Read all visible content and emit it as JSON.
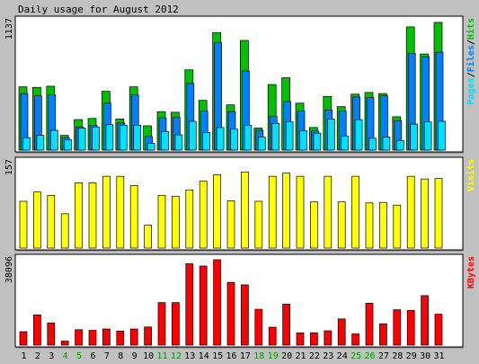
{
  "chart_data": {
    "type": "bar",
    "title": "Daily usage for August 2012",
    "categories": [
      "1",
      "2",
      "3",
      "4",
      "5",
      "6",
      "7",
      "8",
      "9",
      "10",
      "11",
      "12",
      "13",
      "14",
      "15",
      "16",
      "17",
      "18",
      "19",
      "20",
      "21",
      "22",
      "23",
      "24",
      "25",
      "26",
      "27",
      "28",
      "29",
      "30",
      "31"
    ],
    "weekend_days": [
      "4",
      "5",
      "11",
      "12",
      "18",
      "19",
      "25",
      "26"
    ],
    "colors": {
      "background": "#c0c0c0",
      "panel": "#ffffff",
      "hits": "#00c000",
      "files": "#0080ff",
      "pages": "#00e0ff",
      "visits": "#ffff00",
      "kbytes": "#ff0000",
      "weekday_label": "#000000",
      "weekend_label": "#00a000"
    },
    "panels": [
      {
        "id": "hits-files-pages",
        "ymax_label": "1137",
        "ylim": [
          0,
          1137
        ],
        "legend": [
          {
            "text": "Pages",
            "color": "#00e0ff"
          },
          {
            "text": "/",
            "color": "#000000"
          },
          {
            "text": "Files",
            "color": "#0080ff"
          },
          {
            "text": "/",
            "color": "#000000"
          },
          {
            "text": "Hits",
            "color": "#00c000"
          }
        ],
        "series": [
          {
            "name": "Hits",
            "values": [
              560,
              555,
              565,
              130,
              270,
              280,
              520,
              275,
              560,
              215,
              340,
              335,
              710,
              440,
              1040,
              400,
              970,
              195,
              580,
              640,
              415,
              200,
              475,
              385,
              495,
              510,
              500,
              295,
              1090,
              850,
              1130
            ]
          },
          {
            "name": "Files",
            "values": [
              500,
              480,
              490,
              110,
              205,
              220,
              415,
              240,
              490,
              120,
              285,
              290,
              590,
              345,
              950,
              340,
              700,
              175,
              300,
              430,
              345,
              170,
              355,
              345,
              470,
              465,
              480,
              260,
              855,
              825,
              865
            ]
          },
          {
            "name": "Pages",
            "values": [
              110,
              130,
              175,
              90,
              195,
              205,
              225,
              220,
              220,
              60,
              165,
              135,
              255,
              155,
              200,
              185,
              220,
              115,
              235,
              250,
              170,
              150,
              275,
              125,
              270,
              105,
              115,
              85,
              230,
              250,
              255
            ]
          }
        ]
      },
      {
        "id": "visits",
        "ymax_label": "157",
        "ylim": [
          0,
          157
        ],
        "legend": [
          {
            "text": "Visits",
            "color": "#ffff00"
          }
        ],
        "series": [
          {
            "name": "Visits",
            "values": [
              86,
              103,
              97,
              63,
              120,
              120,
              132,
              132,
              115,
              42,
              97,
              95,
              107,
              123,
              135,
              87,
              140,
              86,
              132,
              138,
              132,
              85,
              132,
              85,
              132,
              83,
              84,
              79,
              132,
              127,
              128
            ]
          }
        ]
      },
      {
        "id": "kbytes",
        "ymax_label": "38096",
        "ylim": [
          0,
          38096
        ],
        "legend": [
          {
            "text": "KBytes",
            "color": "#ff0000"
          }
        ],
        "series": [
          {
            "name": "KBytes",
            "values": [
              6000,
              13500,
              9900,
              1800,
              6900,
              6600,
              7200,
              6300,
              7200,
              8100,
              19000,
              19000,
              36300,
              35300,
              38096,
              28000,
              26900,
              16000,
              8000,
              18300,
              5500,
              5500,
              6400,
              11700,
              5000,
              18700,
              9500,
              15800,
              15500,
              22100,
              13800
            ]
          }
        ]
      }
    ]
  }
}
